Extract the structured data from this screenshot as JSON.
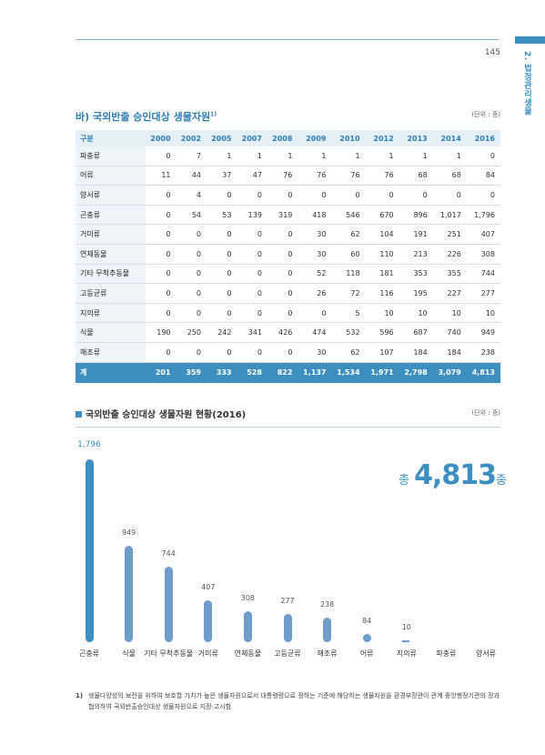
{
  "header": {
    "page_number": "145",
    "side_label": "2. 법정관리생물"
  },
  "table_section": {
    "title": "바) 국외반출 승인대상 생물자원",
    "footnote_ref": "1)",
    "unit": "(단위 : 종)",
    "columns": [
      "구분",
      "2000",
      "2002",
      "2005",
      "2007",
      "2008",
      "2009",
      "2010",
      "2012",
      "2013",
      "2014",
      "2016"
    ],
    "rows": [
      {
        "label": "파충류",
        "values": [
          "0",
          "7",
          "1",
          "1",
          "1",
          "1",
          "1",
          "1",
          "1",
          "1",
          "0"
        ]
      },
      {
        "label": "어류",
        "values": [
          "11",
          "44",
          "37",
          "47",
          "76",
          "76",
          "76",
          "76",
          "68",
          "68",
          "84"
        ]
      },
      {
        "label": "양서류",
        "values": [
          "0",
          "4",
          "0",
          "0",
          "0",
          "0",
          "0",
          "0",
          "0",
          "0",
          "0"
        ]
      },
      {
        "label": "곤충류",
        "values": [
          "0",
          "54",
          "53",
          "139",
          "319",
          "418",
          "546",
          "670",
          "896",
          "1,017",
          "1,796"
        ]
      },
      {
        "label": "거미류",
        "values": [
          "0",
          "0",
          "0",
          "0",
          "0",
          "30",
          "62",
          "104",
          "191",
          "251",
          "407"
        ]
      },
      {
        "label": "연체동물",
        "values": [
          "0",
          "0",
          "0",
          "0",
          "0",
          "30",
          "60",
          "110",
          "213",
          "226",
          "308"
        ]
      },
      {
        "label": "기타 무척추동물",
        "values": [
          "0",
          "0",
          "0",
          "0",
          "0",
          "52",
          "118",
          "181",
          "353",
          "355",
          "744"
        ]
      },
      {
        "label": "고등균류",
        "values": [
          "0",
          "0",
          "0",
          "0",
          "0",
          "26",
          "72",
          "116",
          "195",
          "227",
          "277"
        ]
      },
      {
        "label": "지의류",
        "values": [
          "0",
          "0",
          "0",
          "0",
          "0",
          "0",
          "5",
          "10",
          "10",
          "10",
          "10"
        ]
      },
      {
        "label": "식물",
        "values": [
          "190",
          "250",
          "242",
          "341",
          "426",
          "474",
          "532",
          "596",
          "687",
          "740",
          "949"
        ]
      },
      {
        "label": "해조류",
        "values": [
          "0",
          "0",
          "0",
          "0",
          "0",
          "30",
          "62",
          "107",
          "184",
          "184",
          "238"
        ]
      }
    ],
    "total": {
      "label": "계",
      "values": [
        "201",
        "359",
        "333",
        "528",
        "822",
        "1,137",
        "1,534",
        "1,971",
        "2,798",
        "3,079",
        "4,813"
      ]
    }
  },
  "chart_section": {
    "title": "국외반출 승인대상 생물자원 현황(2016)",
    "unit": "(단위 : 종)",
    "total_prefix": "총",
    "total_value": "4,813",
    "total_suffix": "종"
  },
  "chart_data": {
    "type": "bar",
    "categories": [
      "곤충류",
      "식물",
      "기타 무척추동물",
      "거미류",
      "연체동물",
      "고등균류",
      "해조류",
      "어류",
      "지의류",
      "파충류",
      "양서류"
    ],
    "values": [
      1796,
      949,
      744,
      407,
      308,
      277,
      238,
      84,
      10,
      0,
      0
    ],
    "value_labels": [
      "1,796",
      "949",
      "744",
      "407",
      "308",
      "277",
      "238",
      "84",
      "10",
      "",
      ""
    ],
    "colors": {
      "top": "#3d8fbf",
      "rest": "#6f9cc9"
    }
  },
  "footnote": {
    "mark": "1)",
    "text": "생물다양성의 보전을 위하여 보호할 가치가 높은 생물자원으로서 대통령령으로 정하는 기준에 해당하는 생물자원을 환경부장관이 관계 중앙행정기관의 장과 협의하여 국외반출승인대상 생물자원으로 지정·고시함"
  }
}
